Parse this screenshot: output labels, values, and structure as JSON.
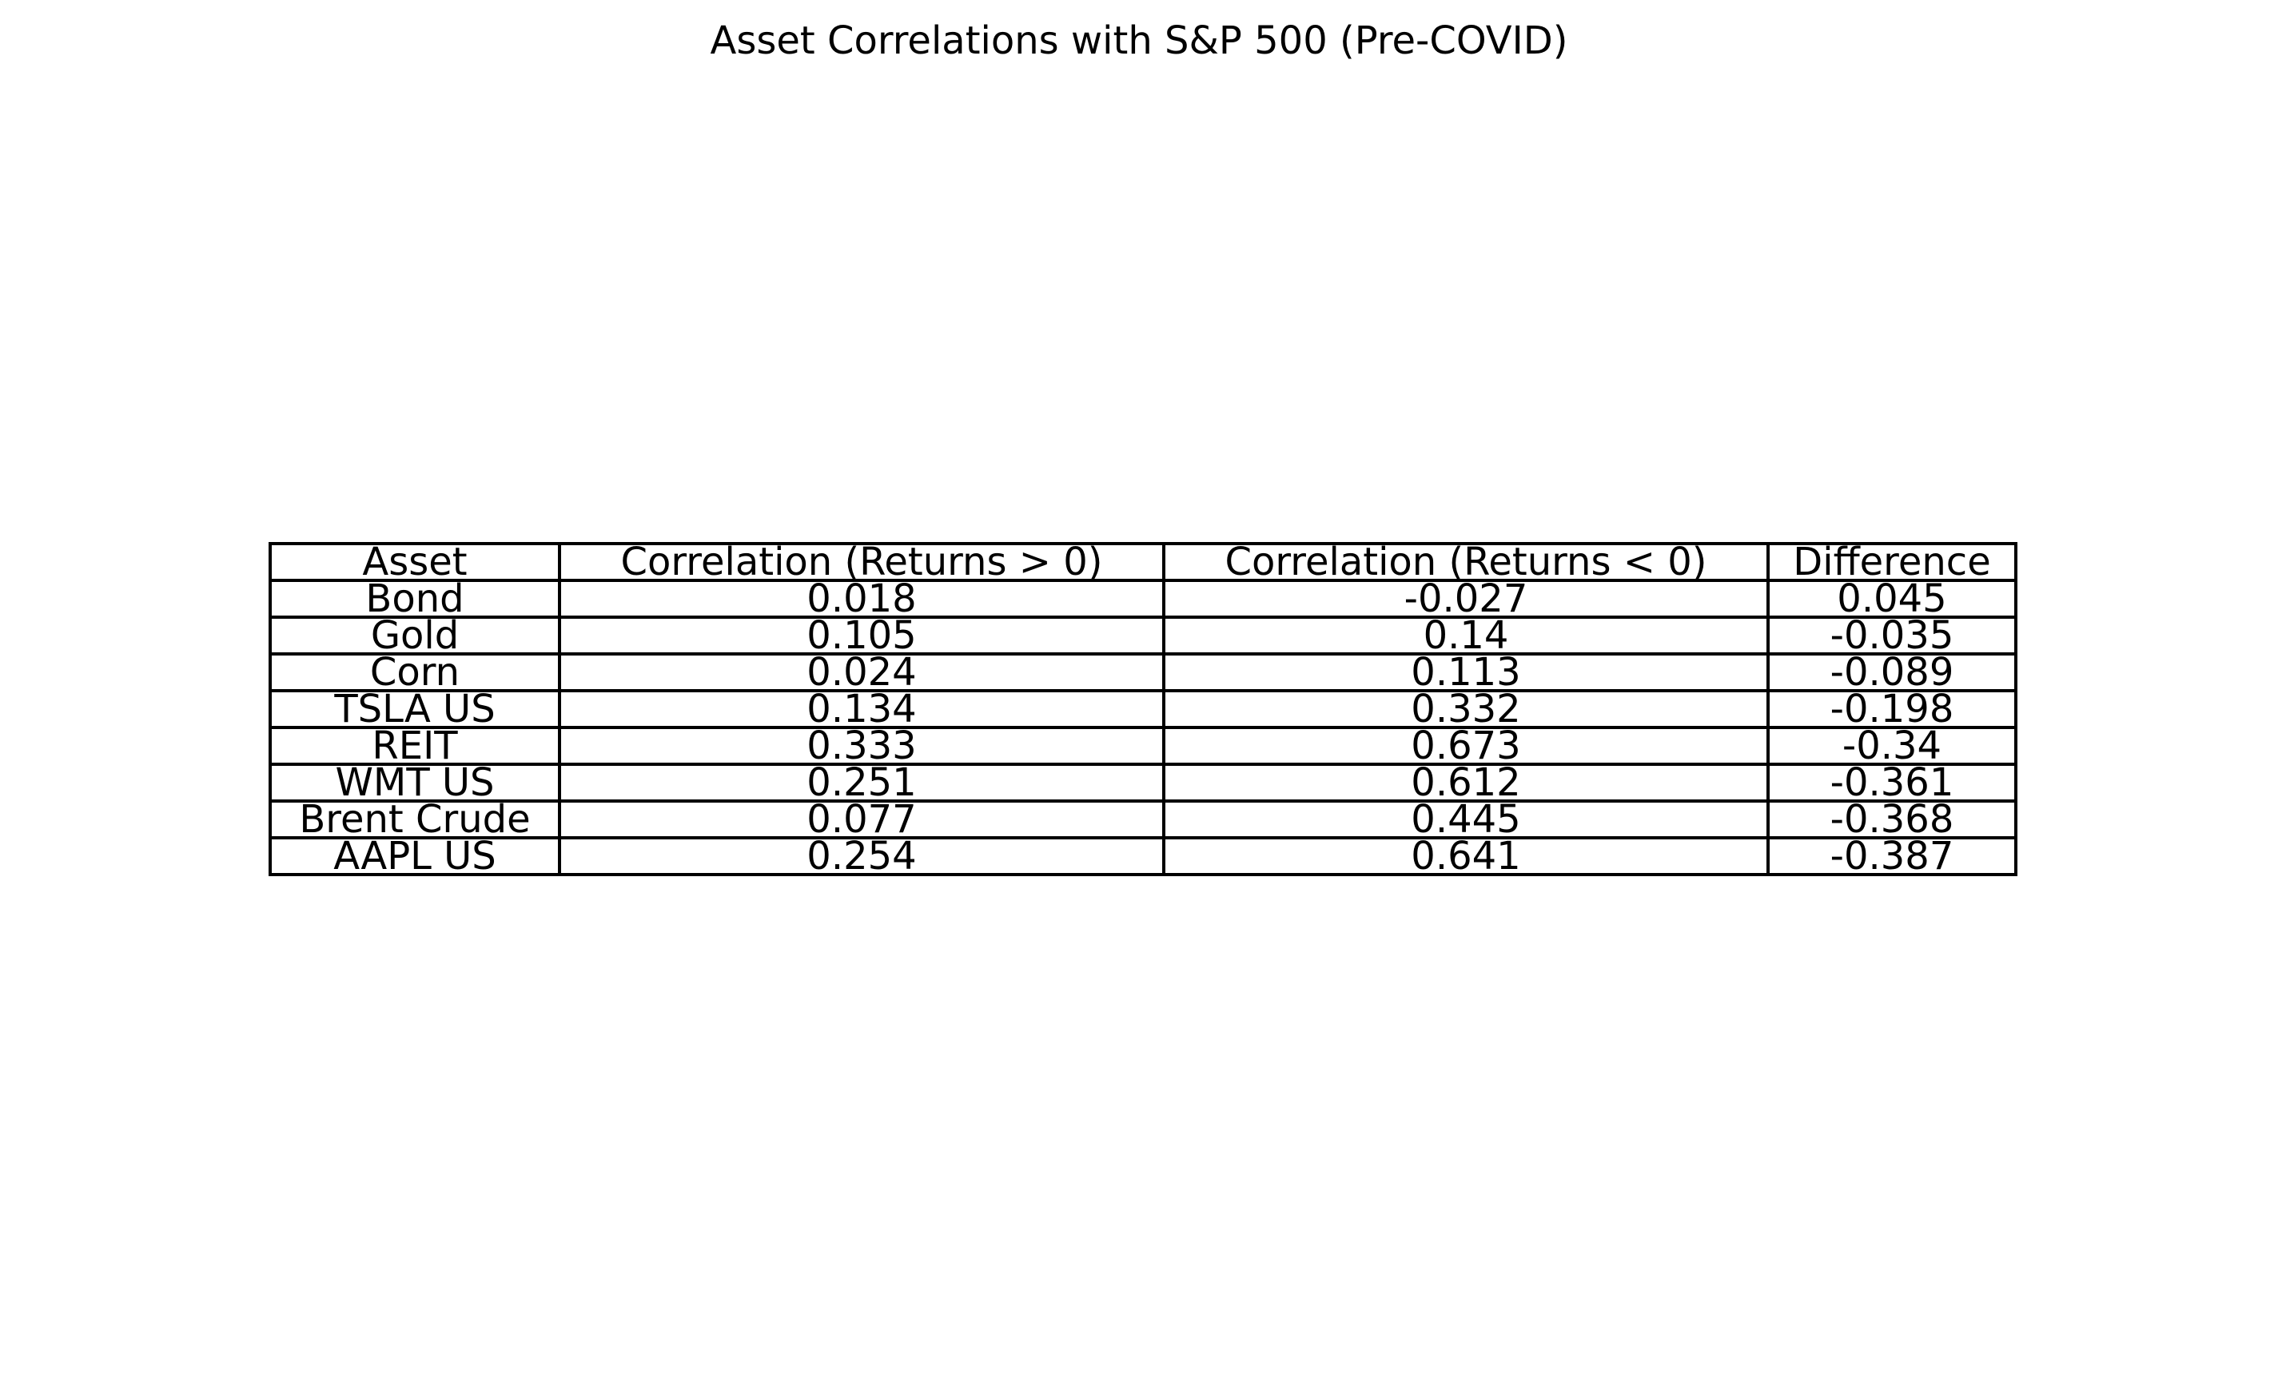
{
  "chart_data": {
    "type": "table",
    "title": "Asset Correlations with S&P 500 (Pre-COVID)",
    "columns": [
      "Asset",
      "Correlation (Returns > 0)",
      "Correlation (Returns < 0)",
      "Difference"
    ],
    "rows": [
      [
        "Bond",
        "0.018",
        "-0.027",
        "0.045"
      ],
      [
        "Gold",
        "0.105",
        "0.14",
        "-0.035"
      ],
      [
        "Corn",
        "0.024",
        "0.113",
        "-0.089"
      ],
      [
        "TSLA US",
        "0.134",
        "0.332",
        "-0.198"
      ],
      [
        "REIT",
        "0.333",
        "0.673",
        "-0.34"
      ],
      [
        "WMT US",
        "0.251",
        "0.612",
        "-0.361"
      ],
      [
        "Brent Crude",
        "0.077",
        "0.445",
        "-0.368"
      ],
      [
        "AAPL US",
        "0.254",
        "0.641",
        "-0.387"
      ]
    ],
    "border_color": "#000000",
    "text_color": "#000000",
    "background_color": "#ffffff"
  }
}
